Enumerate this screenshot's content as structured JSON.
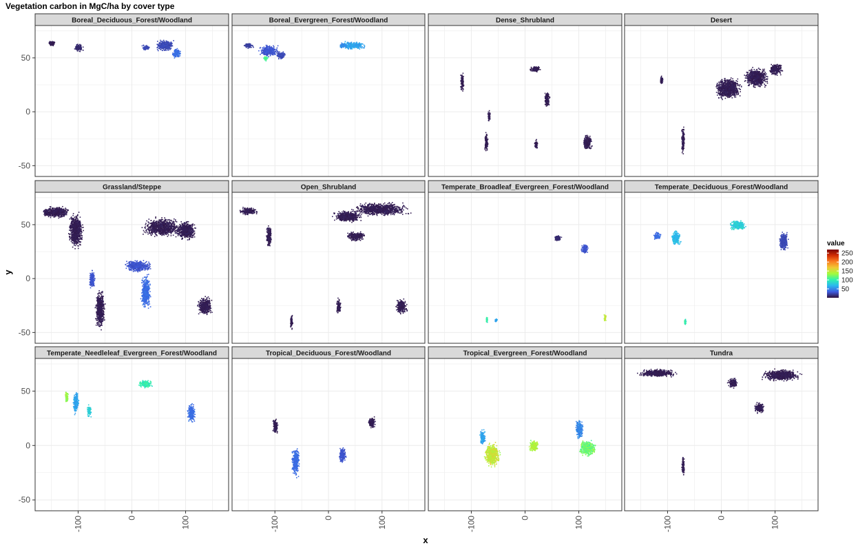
{
  "chart_data": {
    "type": "heatmap",
    "subtype": "faceted-map-raster",
    "title": "Vegetation carbon in MgC/ha by cover type",
    "xlabel": "x",
    "ylabel": "y",
    "xlim": [
      -180,
      180
    ],
    "ylim": [
      -60,
      80
    ],
    "x_ticks": [
      -100,
      0,
      100
    ],
    "x_tick_labels": [
      "-100",
      "0",
      "100"
    ],
    "y_ticks": [
      -50,
      0,
      50
    ],
    "y_tick_labels": [
      "-50",
      "0",
      "50"
    ],
    "grid": true,
    "facet_layout": {
      "rows": 3,
      "cols": 4
    },
    "legend": {
      "title": "value",
      "placement": "right",
      "breaks": [
        250,
        200,
        150,
        100,
        50
      ],
      "range": [
        0,
        270
      ],
      "colors": [
        "#30123b",
        "#3e5ce0",
        "#2ab7ef",
        "#2ff2ad",
        "#a4fb3c",
        "#f0c935",
        "#fb7e21",
        "#d22e05",
        "#7a0403"
      ]
    },
    "facets": [
      {
        "label": "Boreal_Deciduous_Forest/Woodland",
        "regions": [
          [
            60,
            62,
            18,
            6,
            25
          ],
          [
            82,
            55,
            10,
            5,
            40
          ],
          [
            -100,
            60,
            10,
            4,
            10
          ],
          [
            25,
            60,
            8,
            3,
            25
          ],
          [
            -150,
            64,
            8,
            3,
            5
          ]
        ]
      },
      {
        "label": "Boreal_Evergreen_Forest/Woodland",
        "regions": [
          [
            -112,
            57,
            20,
            6,
            30
          ],
          [
            -90,
            53,
            10,
            4,
            25
          ],
          [
            -118,
            50,
            5,
            3,
            110
          ],
          [
            45,
            62,
            28,
            4,
            60
          ],
          [
            25,
            62,
            8,
            3,
            50
          ],
          [
            -150,
            62,
            10,
            3,
            20
          ]
        ]
      },
      {
        "label": "Dense_Shrubland",
        "regions": [
          [
            -118,
            28,
            4,
            10,
            5
          ],
          [
            -68,
            -3,
            3,
            6,
            5
          ],
          [
            -73,
            -28,
            4,
            10,
            5
          ],
          [
            18,
            40,
            12,
            3,
            5
          ],
          [
            40,
            12,
            6,
            8,
            5
          ],
          [
            115,
            -28,
            10,
            8,
            5
          ],
          [
            20,
            -30,
            4,
            6,
            5
          ]
        ]
      },
      {
        "label": "Desert",
        "regions": [
          [
            12,
            22,
            28,
            11,
            5
          ],
          [
            65,
            32,
            25,
            10,
            5
          ],
          [
            100,
            40,
            15,
            6,
            5
          ],
          [
            -72,
            -27,
            3,
            16,
            5
          ],
          [
            -112,
            30,
            4,
            5,
            5
          ]
        ]
      },
      {
        "label": "Grassland/Steppe",
        "regions": [
          [
            -105,
            45,
            15,
            18,
            5
          ],
          [
            -140,
            62,
            25,
            6,
            5
          ],
          [
            10,
            12,
            28,
            6,
            30
          ],
          [
            55,
            48,
            40,
            10,
            5
          ],
          [
            100,
            45,
            20,
            10,
            5
          ],
          [
            -60,
            -28,
            10,
            20,
            5
          ],
          [
            25,
            -12,
            10,
            18,
            40
          ],
          [
            135,
            -25,
            15,
            10,
            5
          ],
          [
            -75,
            0,
            6,
            10,
            30
          ],
          [
            -160,
            62,
            8,
            4,
            5
          ]
        ]
      },
      {
        "label": "Open_Shrubland",
        "regions": [
          [
            -112,
            40,
            6,
            12,
            5
          ],
          [
            95,
            65,
            60,
            7,
            5
          ],
          [
            35,
            58,
            30,
            6,
            5
          ],
          [
            50,
            40,
            20,
            5,
            5
          ],
          [
            -150,
            63,
            20,
            4,
            5
          ],
          [
            135,
            -25,
            12,
            8,
            5
          ],
          [
            18,
            -25,
            5,
            8,
            5
          ],
          [
            -70,
            -40,
            3,
            8,
            5
          ]
        ]
      },
      {
        "label": "Temperate_Broadleaf_Evergreen_Forest/Woodland",
        "regions": [
          [
            110,
            28,
            8,
            5,
            30
          ],
          [
            60,
            38,
            8,
            3,
            10
          ],
          [
            148,
            -36,
            3,
            4,
            150
          ],
          [
            -72,
            -38,
            2,
            3,
            100
          ],
          [
            -55,
            -38,
            3,
            2,
            60
          ]
        ]
      },
      {
        "label": "Temperate_Deciduous_Forest/Woodland",
        "regions": [
          [
            -85,
            38,
            10,
            8,
            70
          ],
          [
            -120,
            40,
            8,
            4,
            40
          ],
          [
            30,
            50,
            18,
            5,
            80
          ],
          [
            115,
            35,
            10,
            10,
            25
          ],
          [
            -68,
            -40,
            2,
            3,
            100
          ]
        ]
      },
      {
        "label": "Temperate_Needleleaf_Evergreen_Forest/Woodland",
        "regions": [
          [
            -122,
            45,
            4,
            6,
            130
          ],
          [
            -105,
            40,
            6,
            12,
            60
          ],
          [
            -80,
            32,
            5,
            6,
            80
          ],
          [
            25,
            57,
            15,
            4,
            100
          ],
          [
            110,
            30,
            8,
            10,
            40
          ]
        ]
      },
      {
        "label": "Tropical_Deciduous_Forest/Woodland",
        "regions": [
          [
            80,
            22,
            8,
            6,
            5
          ],
          [
            25,
            -8,
            8,
            8,
            30
          ],
          [
            -62,
            -15,
            8,
            15,
            40
          ],
          [
            -100,
            18,
            6,
            8,
            5
          ]
        ]
      },
      {
        "label": "Tropical_Evergreen_Forest/Woodland",
        "regions": [
          [
            -62,
            -8,
            16,
            12,
            150
          ],
          [
            15,
            0,
            10,
            6,
            140
          ],
          [
            115,
            -2,
            18,
            8,
            120
          ],
          [
            -80,
            8,
            6,
            8,
            60
          ],
          [
            100,
            15,
            8,
            10,
            50
          ]
        ]
      },
      {
        "label": "Tundra",
        "regions": [
          [
            -120,
            67,
            40,
            4,
            5
          ],
          [
            110,
            65,
            40,
            6,
            5
          ],
          [
            70,
            35,
            10,
            6,
            5
          ],
          [
            -72,
            -18,
            3,
            10,
            5
          ],
          [
            20,
            58,
            10,
            5,
            5
          ]
        ]
      }
    ]
  }
}
